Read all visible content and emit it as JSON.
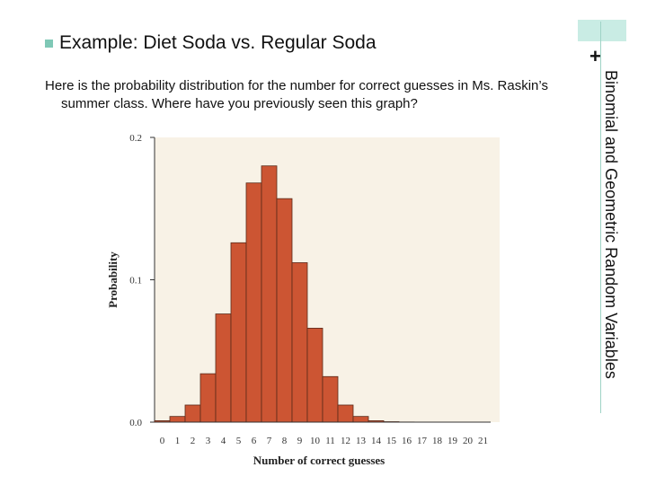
{
  "slide": {
    "bullet_label": "n",
    "heading": "Example: Diet Soda vs. Regular Soda",
    "body_line1": "Here is the probability distribution for the number for correct guesses in Ms. Raskin’s",
    "body_line2": "summer class.  Where have you previously seen this graph?",
    "side_title": "Binomial and Geometric Random Variables",
    "plus": "+",
    "accent_color": "#7fc8b6"
  },
  "chart_data": {
    "type": "bar",
    "categories": [
      "0",
      "1",
      "2",
      "3",
      "4",
      "5",
      "6",
      "7",
      "8",
      "9",
      "10",
      "11",
      "12",
      "13",
      "14",
      "15",
      "16",
      "17",
      "18",
      "19",
      "20",
      "21"
    ],
    "values": [
      0.001,
      0.004,
      0.012,
      0.034,
      0.076,
      0.126,
      0.168,
      0.18,
      0.157,
      0.112,
      0.066,
      0.032,
      0.012,
      0.004,
      0.001,
      0.0003,
      0.0001,
      0,
      0,
      0,
      0,
      0
    ],
    "xlabel": "Number of correct guesses",
    "ylabel": "Probability",
    "ylim": [
      0,
      0.2
    ],
    "yticks": [
      0.0,
      0.1,
      0.2
    ],
    "ytick_labels": [
      "0.0",
      "0.1",
      "0.2"
    ],
    "bar_color": "#cc5533",
    "plot_background": "#f8f2e6"
  }
}
